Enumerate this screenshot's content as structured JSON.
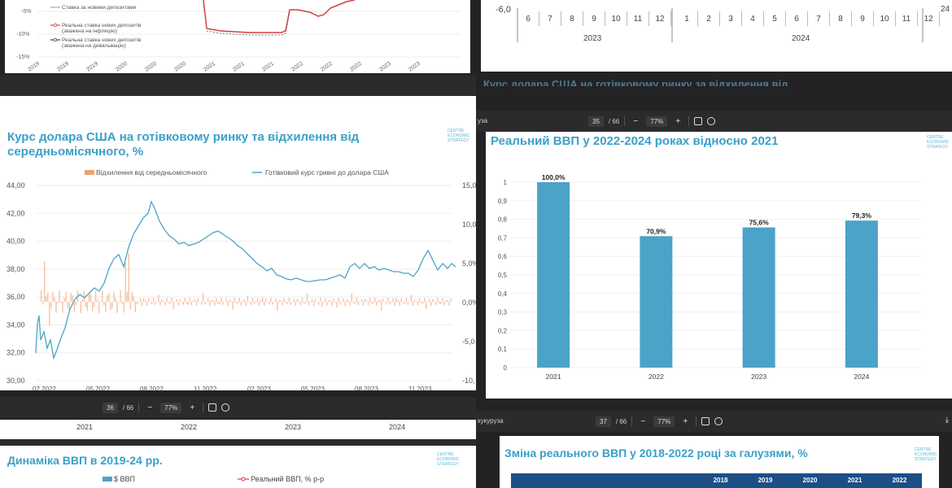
{
  "colors": {
    "accent": "#3aa0c9",
    "bar": "#4ba3c8",
    "orange": "#f0a070",
    "line": "#4aa5c4",
    "toolbar": "#2b2b2d"
  },
  "top_left": {
    "ticks": [
      "-5%",
      "-10%",
      "-15%"
    ],
    "legend": [
      "Ставка за новими депозитами",
      "Реальна ставка нових депозитів",
      "(зважена на інфляцію)",
      "Реальна ставка нових депозитів",
      "(зважена на девальвацію)"
    ],
    "xticks": [
      "2019",
      "2019",
      "2019",
      "2020",
      "2020",
      "2020",
      "2021",
      "2021",
      "2021",
      "2022",
      "2022",
      "2022",
      "2023",
      "2023"
    ]
  },
  "top_right": {
    "y_value": "-6,0",
    "months": [
      "6",
      "7",
      "8",
      "9",
      "10",
      "11",
      "12",
      "1",
      "2",
      "3",
      "4",
      "5",
      "6",
      "7",
      "8",
      "9",
      "10",
      "11",
      "12"
    ],
    "years": [
      "2023",
      "2024"
    ],
    "edge_year": "24",
    "faded_title": "Курс долара США на готівковому ринку за відхилення від"
  },
  "viewer_a": {
    "page": "35",
    "total": "/ 66",
    "zoom": "77%",
    "file_label": "уза"
  },
  "viewer_b": {
    "page": "36",
    "total": "/ 66",
    "zoom": "77%"
  },
  "viewer_c": {
    "page": "37",
    "total": "/ 66",
    "zoom": "77%",
    "file_label": "кукуруза"
  },
  "usd_slide": {
    "title_line1": "Курс долара США на готівковому ринку та відхилення від",
    "title_line2": "середньомісячного, %",
    "legend_bar": "Відхилення від середньомісячного",
    "legend_line": "Готівковий курс гривні до долара США",
    "y_left": [
      "44,00",
      "42,00",
      "40,00",
      "38,00",
      "36,00",
      "34,00",
      "32,00",
      "30,00"
    ],
    "y_right": [
      "15,0",
      "10,0",
      "5,0%",
      "0,0%",
      "-5,0",
      "-10,"
    ],
    "x_ticks": [
      "02.2022",
      "05.2022",
      "08.2022",
      "11.2022",
      "02.2023",
      "05.2023",
      "08.2023",
      "11.2023"
    ]
  },
  "gdp_slide": {
    "title": "Реальний ВВП у 2022-2024 роках відносно 2021"
  },
  "chart_data": {
    "type": "bar",
    "title": "Реальний ВВП у 2022-2024 роках відносно 2021",
    "categories": [
      "2021",
      "2022",
      "2023",
      "2024"
    ],
    "values": [
      1.0,
      0.709,
      0.756,
      0.793
    ],
    "data_labels": [
      "100,0%",
      "70,9%",
      "75,6%",
      "79,3%"
    ],
    "yticks": [
      "1",
      "0,9",
      "0,8",
      "0,7",
      "0,6",
      "0,5",
      "0,4",
      "0,3",
      "0,2",
      "0,1",
      "0"
    ],
    "ylim": [
      0,
      1
    ],
    "grid": true
  },
  "bottom_left": {
    "years": [
      "2021",
      "2022",
      "2023",
      "2024"
    ],
    "title": "Динаміка ВВП в 2019-24 рр.",
    "legend_bar": "$ ВВП",
    "legend_line": "Реальний ВВП, % р-р"
  },
  "bottom_right": {
    "title": "Зміна реального ВВП у 2018-2022 році за галузями, %",
    "columns": [
      "2018",
      "2019",
      "2020",
      "2021",
      "2022"
    ]
  },
  "logo_text": [
    "CENTRE",
    "ECONOMIC",
    "STRATEGY"
  ]
}
